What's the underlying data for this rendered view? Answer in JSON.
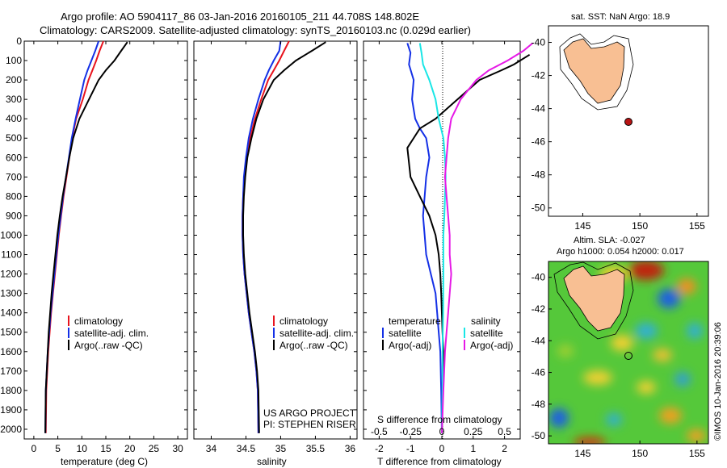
{
  "header": {
    "line1": "Argo profile: AO 5904117_86 03-Jan-2016 20160105_211 44.708S 148.802E",
    "line2": "Climatology: CARS2009. Satellite-adjusted climatology: synTS_20160103.nc (0.029d earlier)"
  },
  "colors": {
    "climatology": "#e8141e",
    "satellite": "#1430e6",
    "argo": "#000000",
    "sat_s": "#19e6e6",
    "argo_s": "#e619e6",
    "land": "#f8bf93"
  },
  "chart_data": [
    {
      "type": "line",
      "xlabel": "temperature (deg C)",
      "x_ticks": [
        "0",
        "5",
        "10",
        "15",
        "20",
        "25",
        "30"
      ],
      "xlim": [
        -2,
        32
      ],
      "ylim": [
        0,
        2050
      ],
      "y_ticks": [
        "0",
        "100",
        "200",
        "300",
        "400",
        "500",
        "600",
        "700",
        "800",
        "900",
        "1000",
        "1100",
        "1200",
        "1300",
        "1400",
        "1500",
        "1600",
        "1700",
        "1800",
        "1900",
        "2000"
      ],
      "legend": [
        "climatology",
        "satellite-adj. clim.",
        "Argo(..raw -QC)"
      ],
      "series": [
        {
          "name": "climatology",
          "x": [
            14.5,
            13.7,
            13.0,
            12.2,
            11.4,
            10.2,
            8.8,
            8.0,
            7.4,
            6.8,
            6.2,
            5.7,
            5.2,
            4.8,
            4.4,
            4.0,
            3.6,
            3.3,
            3.0,
            2.8,
            2.6,
            2.5
          ],
          "y": [
            0,
            50,
            100,
            150,
            200,
            300,
            400,
            500,
            600,
            700,
            800,
            900,
            1000,
            1100,
            1200,
            1300,
            1400,
            1500,
            1600,
            1700,
            1800,
            2020
          ]
        },
        {
          "name": "satellite-adj. clim.",
          "x": [
            13.5,
            12.8,
            12.0,
            11.2,
            10.5,
            9.6,
            8.7,
            7.9,
            7.3,
            6.7,
            6.1,
            5.6,
            5.1,
            4.7,
            4.3,
            3.9,
            3.5,
            3.2,
            2.9,
            2.7,
            2.5,
            2.4
          ],
          "y": [
            0,
            50,
            100,
            150,
            200,
            300,
            400,
            500,
            600,
            700,
            800,
            900,
            1000,
            1100,
            1200,
            1300,
            1400,
            1500,
            1600,
            1700,
            1800,
            2020
          ]
        },
        {
          "name": "Argo(..raw -QC)",
          "x": [
            19.5,
            18.2,
            16.8,
            15.0,
            13.5,
            11.5,
            9.5,
            8.2,
            7.4,
            6.7,
            6.0,
            5.4,
            4.9,
            4.5,
            4.1,
            3.7,
            3.4,
            3.1,
            2.9,
            2.7,
            2.5,
            2.4
          ],
          "y": [
            5,
            50,
            100,
            150,
            200,
            300,
            400,
            500,
            600,
            700,
            800,
            900,
            1000,
            1100,
            1200,
            1300,
            1400,
            1500,
            1600,
            1700,
            1800,
            2020
          ]
        }
      ]
    },
    {
      "type": "line",
      "xlabel": "salinity",
      "x_ticks": [
        "34",
        "34.5",
        "35",
        "35.5",
        "36"
      ],
      "xlim": [
        33.75,
        36.1
      ],
      "ylim": [
        0,
        2050
      ],
      "legend": [
        "climatology",
        "satellite-adj. clim.",
        "Argo(..raw -QC)"
      ],
      "annotation": [
        "US ARGO PROJECT",
        "PI: STEPHEN RISER"
      ],
      "series": [
        {
          "name": "climatology",
          "x": [
            35.12,
            35.05,
            34.98,
            34.9,
            34.82,
            34.72,
            34.63,
            34.56,
            34.51,
            34.48,
            34.46,
            34.45,
            34.45,
            34.46,
            34.48,
            34.51,
            34.54,
            34.58,
            34.62,
            34.65,
            34.67,
            34.68
          ],
          "y": [
            0,
            50,
            100,
            150,
            200,
            300,
            400,
            500,
            600,
            700,
            800,
            900,
            1000,
            1100,
            1200,
            1300,
            1400,
            1500,
            1600,
            1700,
            1800,
            2020
          ]
        },
        {
          "name": "satellite-adj. clim.",
          "x": [
            35.0,
            34.98,
            34.9,
            34.83,
            34.77,
            34.68,
            34.6,
            34.54,
            34.5,
            34.47,
            34.46,
            34.45,
            34.45,
            34.46,
            34.48,
            34.51,
            34.54,
            34.58,
            34.62,
            34.65,
            34.67,
            34.68
          ],
          "y": [
            0,
            50,
            100,
            150,
            200,
            300,
            400,
            500,
            600,
            700,
            800,
            900,
            1000,
            1100,
            1200,
            1300,
            1400,
            1500,
            1600,
            1700,
            1800,
            2020
          ]
        },
        {
          "name": "Argo(..raw -QC)",
          "x": [
            35.65,
            35.45,
            35.22,
            35.05,
            34.9,
            34.75,
            34.65,
            34.58,
            34.52,
            34.49,
            34.47,
            34.46,
            34.46,
            34.47,
            34.49,
            34.52,
            34.55,
            34.59,
            34.63,
            34.66,
            34.68,
            34.69
          ],
          "y": [
            5,
            50,
            100,
            150,
            200,
            300,
            400,
            500,
            600,
            700,
            800,
            900,
            1000,
            1100,
            1200,
            1300,
            1400,
            1500,
            1600,
            1700,
            1800,
            2020
          ]
        }
      ]
    },
    {
      "type": "line",
      "xlabel": "T difference from climatology",
      "xlabel_top": "S difference from climatology",
      "x_ticks": [
        "-2",
        "-1",
        "0",
        "1",
        "2"
      ],
      "x_ticks_top": [
        "-0.5",
        "-0.25",
        "0",
        "0.25",
        "0.5"
      ],
      "xlim": [
        -2.5,
        2.5
      ],
      "ylim": [
        0,
        2050
      ],
      "legend_left_title": "temperature",
      "legend_right_title": "salinity",
      "legend": [
        "satellite",
        "Argo(-adj)",
        "satellite",
        "Argo(-adj)"
      ],
      "series": [
        {
          "name": "satellite",
          "x": [
            -1.1,
            -1.0,
            -1.05,
            -0.9,
            -0.95,
            -0.85,
            -0.7,
            -0.5,
            -0.4,
            -0.5,
            -0.55,
            -0.6,
            -0.55,
            -0.5,
            -0.35,
            -0.2,
            -0.15,
            -0.1,
            -0.05,
            -0.02,
            0.0
          ],
          "y": [
            10,
            60,
            120,
            200,
            300,
            400,
            450,
            500,
            600,
            700,
            800,
            900,
            1000,
            1100,
            1200,
            1300,
            1400,
            1500,
            1600,
            1800,
            2020
          ]
        },
        {
          "name": "Argo(-adj)",
          "x": [
            2.8,
            2.3,
            1.9,
            1.2,
            0.5,
            -0.2,
            -0.7,
            -1.1,
            -1.0,
            -0.7,
            -0.4,
            -0.2,
            -0.1,
            -0.05,
            -0.02,
            0.0,
            0.02,
            0.05,
            0.05,
            0.03,
            0.0
          ],
          "y": [
            70,
            120,
            150,
            200,
            300,
            400,
            450,
            550,
            700,
            800,
            900,
            1000,
            1100,
            1200,
            1300,
            1400,
            1500,
            1600,
            1700,
            1800,
            2020
          ]
        },
        {
          "name": "satellite",
          "x": [
            -0.7,
            -0.65,
            -0.6,
            -0.4,
            -0.2,
            -0.1,
            0.05,
            0.1,
            0.12,
            0.1,
            0.08,
            0.05,
            0.05,
            0.04,
            0.03,
            0.02,
            0.02,
            0.0
          ],
          "y": [
            10,
            60,
            120,
            200,
            300,
            400,
            500,
            600,
            700,
            800,
            900,
            1000,
            1200,
            1400,
            1500,
            1600,
            1800,
            2020
          ]
        },
        {
          "name": "Argo(-adj)",
          "x": [
            2.9,
            2.6,
            2.1,
            1.5,
            1.1,
            0.6,
            0.3,
            0.2,
            0.15,
            0.1,
            0.15,
            0.2,
            0.25,
            0.25,
            0.3,
            0.25,
            0.2,
            0.15,
            0.1,
            0.05,
            0.0
          ],
          "y": [
            10,
            50,
            100,
            150,
            200,
            300,
            400,
            500,
            600,
            700,
            800,
            900,
            1000,
            1100,
            1200,
            1300,
            1400,
            1500,
            1600,
            1800,
            2020
          ]
        }
      ]
    }
  ],
  "map_sst": {
    "title": "sat. SST: NaN Argo: 18.9",
    "x_ticks": [
      "145",
      "150",
      "155"
    ],
    "y_ticks": [
      "-40",
      "-42",
      "-44",
      "-46",
      "-48",
      "-50"
    ]
  },
  "map_sla": {
    "title1": "Altim. SLA: -0.027",
    "title2": "Argo h1000: 0.054 h2000: 0.017",
    "x_ticks": [
      "145",
      "150",
      "155"
    ],
    "y_ticks": [
      "-40",
      "-42",
      "-44",
      "-46",
      "-48",
      "-50"
    ],
    "side_label": "©IMOS 10-Jan-2016 20:39:06"
  }
}
